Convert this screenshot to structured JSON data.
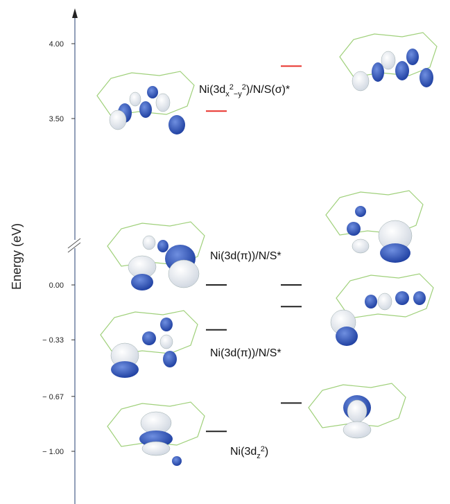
{
  "axis": {
    "title": "Energy (eV)",
    "ticks": [
      {
        "value": 4.0,
        "label": "4.00"
      },
      {
        "value": 3.5,
        "label": "3.50"
      },
      {
        "value": 0.0,
        "label": "0.00"
      },
      {
        "value": -0.33,
        "label": "− 0.33"
      },
      {
        "value": -0.67,
        "label": "− 0.67"
      },
      {
        "value": -1.0,
        "label": "− 1.00"
      }
    ]
  },
  "levels": {
    "left": [
      {
        "energy": 3.55,
        "color": "#e8302a"
      },
      {
        "energy": 0.0,
        "color": "#222222"
      },
      {
        "energy": -0.27,
        "color": "#222222"
      },
      {
        "energy": -0.88,
        "color": "#222222"
      }
    ],
    "right": [
      {
        "energy": 3.85,
        "color": "#e8302a"
      },
      {
        "energy": 0.0,
        "color": "#222222"
      },
      {
        "energy": -0.13,
        "color": "#222222"
      },
      {
        "energy": -0.71,
        "color": "#222222"
      }
    ]
  },
  "labels": [
    {
      "parts": [
        "Ni(3d",
        "x",
        "2",
        "−y",
        "2",
        ")/N/S(σ)*"
      ]
    },
    {
      "parts": [
        "Ni(3d(π))/N/S*"
      ]
    },
    {
      "parts": [
        "Ni(3d(π))/N/S*"
      ]
    },
    {
      "parts": [
        "Ni(3d",
        "z",
        "2",
        ")"
      ]
    }
  ]
}
